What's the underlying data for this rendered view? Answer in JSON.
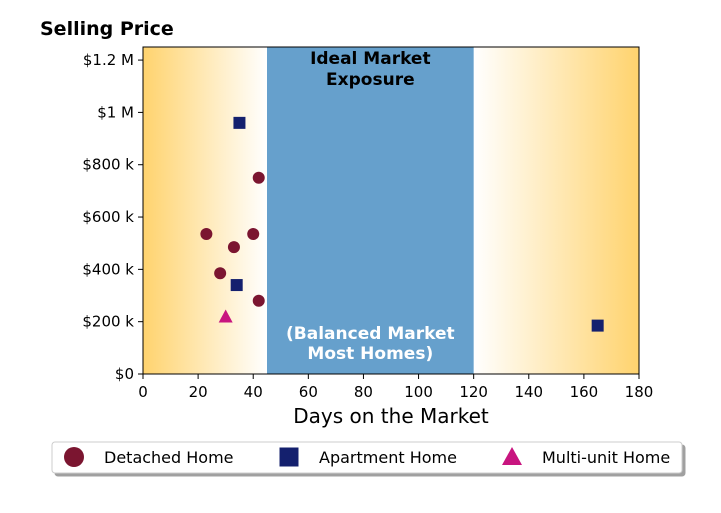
{
  "chart_data": {
    "type": "scatter",
    "title": "Selling Price",
    "xlabel": "Days on the Market",
    "ylabel": "",
    "xlim": [
      0,
      180
    ],
    "ylim": [
      0,
      1250000
    ],
    "x_ticks": [
      0,
      20,
      40,
      60,
      80,
      100,
      120,
      140,
      160,
      180
    ],
    "x_tick_labels": [
      "0",
      "20",
      "40",
      "60",
      "80",
      "100",
      "120",
      "140",
      "160",
      "180"
    ],
    "y_ticks": [
      0,
      200000,
      400000,
      600000,
      800000,
      1000000,
      1200000
    ],
    "y_tick_labels": [
      "$0",
      "$200 k",
      "$400 k",
      "$600 k",
      "$800 k",
      "$1 M",
      "$1.2 M"
    ],
    "grid": false,
    "legend_placement": "bottom",
    "background": {
      "edge_color": "#ffd36e",
      "ideal_band": {
        "x_range": [
          45,
          120
        ],
        "color": "#66a0cc",
        "label_top": [
          "Ideal Market",
          "Exposure"
        ],
        "label_bottom": [
          "(Balanced Market",
          "Most Homes)"
        ]
      }
    },
    "series": [
      {
        "name": "Detached Home",
        "marker": "circle",
        "color": "#7b1530",
        "points": [
          {
            "x": 23,
            "y": 535000
          },
          {
            "x": 28,
            "y": 385000
          },
          {
            "x": 33,
            "y": 485000
          },
          {
            "x": 40,
            "y": 535000
          },
          {
            "x": 42,
            "y": 750000
          },
          {
            "x": 42,
            "y": 280000
          }
        ]
      },
      {
        "name": "Apartment Home",
        "marker": "square",
        "color": "#14206e",
        "points": [
          {
            "x": 35,
            "y": 960000
          },
          {
            "x": 34,
            "y": 340000
          },
          {
            "x": 165,
            "y": 185000
          }
        ]
      },
      {
        "name": "Multi-unit Home",
        "marker": "triangle",
        "color": "#c8157f",
        "points": [
          {
            "x": 30,
            "y": 220000
          }
        ]
      }
    ]
  }
}
